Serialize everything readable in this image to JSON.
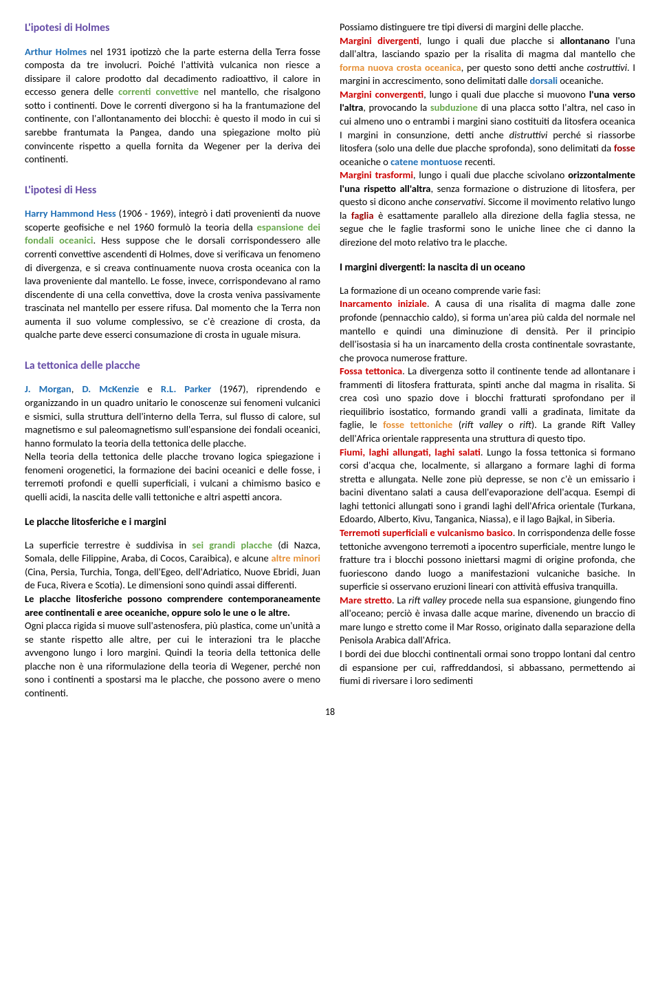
{
  "colors": {
    "blue": "#1f6fb5",
    "green": "#6aa84f",
    "orange": "#e69138",
    "red": "#cc0000",
    "purple": "#674ea7",
    "darkred": "#990000",
    "black": "#000000",
    "bg": "#ffffff"
  },
  "page_number": "18",
  "sec1_title": "L'ipotesi di Holmes",
  "sec1_p1_a": "Arthur Holmes",
  "sec1_p1_b": " nel 1931 ipotizzò che la parte esterna della Terra fosse composta da tre involucri. Poiché l'attività vulcanica non riesce a dissipare il calore prodotto dal decadimento radioattivo, il calore in eccesso genera delle ",
  "sec1_p1_c": "correnti convettive",
  "sec1_p1_d": " nel mantello, che risalgono sotto i continenti. Dove le correnti divergono si ha la frantumazione del continente, con l'allontanamento dei blocchi: è questo il modo in cui si sarebbe frantumata la Pangea, dando una spiegazione molto più convincente rispetto a quella fornita da Wegener per la deriva dei continenti.",
  "sec2_title": "L'ipotesi di Hess",
  "sec2_p1_a": "Harry Hammond Hess",
  "sec2_p1_b": " (1906 - 1969), integrò i dati provenienti da nuove scoperte geofisiche e nel 1960 formulò la teoria della ",
  "sec2_p1_c": "espansione dei fondali oceanici",
  "sec2_p1_d": ". Hess suppose che le dorsali corrispondessero alle correnti convettive ascendenti di Holmes, dove si verificava un fenomeno di divergenza, e si creava continuamente nuova crosta oceanica con la lava proveniente dal mantello. Le fosse, invece, corrispondevano al ramo discendente di una cella convettiva, dove la crosta veniva passivamente trascinata nel mantello per essere rifusa. Dal momento che la Terra non aumenta il suo volume complessivo, se c'è creazione di crosta, da qualche parte deve esserci consumazione di crosta in uguale misura.",
  "sec3_title": "La tettonica delle placche",
  "sec3_p1_a": "J. Morgan",
  "sec3_p1_b": "D. McKenzie",
  "sec3_p1_c": "R.L. Parker",
  "sec3_p1_d": " (1967), riprendendo e organizzando in un quadro unitario le conoscenze sui fenomeni vulcanici e sismici, sulla struttura dell'interno della Terra, sul flusso di calore, sul magnetismo e sul paleomagnetismo sull'espansione dei fondali oceanici, hanno formulato la teoria della tettonica delle placche.",
  "sec3_p2": "Nella teoria della tettonica delle placche trovano logica spiegazione i fenomeni orogenetici, la formazione dei bacini oceanici e delle fosse, i terremoti profondi e quelli superficiali, i vulcani a chimismo basico e quelli acidi, la nascita delle valli tettoniche e altri aspetti ancora.",
  "sub1_title": "Le placche litosferiche e i margini",
  "sub1_p1_a": "La superficie terrestre è suddivisa in ",
  "sub1_p1_b": "sei grandi placche",
  "sub1_p1_c": " (di Nazca, Somala, delle Filippine, Araba, di Cocos, Caraibica), e alcune ",
  "sub1_p1_d": "altre minori",
  "sub1_p1_e": " (Cina, Persia, Turchia, Tonga, dell'Egeo, dell'Adriatico, Nuove Ebridi, Juan de Fuca, Rivera e Scotia). Le dimensioni sono quindi assai differenti.",
  "sub1_p2": "Le placche litosferiche possono comprendere contemporaneamente aree continentali e aree oceaniche, oppure solo le une o le altre.",
  "sub1_p3": "Ogni placca rigida si muove sull'astenosfera, più plastica, come un'unità a se stante rispetto alle altre, per cui le interazioni tra le placche avvengono lungo i loro margini. Quindi la teoria della tettonica delle placche non è una riformulazione della teoria di Wegener, perché non sono i continenti a spostarsi ma le placche, che possono avere o meno continenti.",
  "col2_p1": "Possiamo distinguere tre tipi diversi di margini delle placche.",
  "col2_p2_a": "Margini divergenti",
  "col2_p2_b": ", lungo i quali due placche si ",
  "col2_p2_c": "allontanano",
  "col2_p2_d": " l'una dall'altra, lasciando spazio per la risalita di magma dal mantello che ",
  "col2_p2_e": "forma nuova crosta oceanica",
  "col2_p2_f": ", per questo sono detti anche ",
  "col2_p2_g": "costruttivi",
  "col2_p2_h": ". I margini in accrescimento, sono delimitati dalle ",
  "col2_p2_i": "dorsali",
  "col2_p2_j": " oceaniche.",
  "col2_p3_a": "Margini convergenti",
  "col2_p3_b": ", lungo i quali due placche si muovono ",
  "col2_p3_c": "l'una verso l'altra",
  "col2_p3_d": ", provocando la ",
  "col2_p3_e": "subduzione",
  "col2_p3_f": " di una placca sotto l'altra, nel caso in cui almeno uno o entrambi i margini siano costituiti da litosfera oceanica I margini in consunzione, detti anche ",
  "col2_p3_g": "distruttivi",
  "col2_p3_h": " perché si riassorbe litosfera (solo una delle due placche sprofonda), sono delimitati da ",
  "col2_p3_i": "fosse",
  "col2_p3_j": " oceaniche o ",
  "col2_p3_k": "catene montuose",
  "col2_p3_l": " recenti.",
  "col2_p4_a": "Margini trasformi",
  "col2_p4_b": ", lungo i quali due placche scivolano ",
  "col2_p4_c": "orizzontalmente l'una rispetto all'altra",
  "col2_p4_d": ", senza formazione o distruzione di litosfera, per questo si dicono anche ",
  "col2_p4_e": "conservativi",
  "col2_p4_f": ". Siccome il movimento relativo lungo la ",
  "col2_p4_g": "faglia",
  "col2_p4_h": " è esattamente parallelo alla direzione della faglia stessa, ne segue che le faglie trasformi sono le uniche linee che ci danno la direzione del moto relativo tra le placche.",
  "sub2_title": "I margini divergenti: la nascita di un oceano",
  "sub2_p1": "La formazione di un oceano comprende varie fasi:",
  "sub2_p2_a": "Inarcamento iniziale",
  "sub2_p2_b": ". A causa di una risalita di magma dalle zone profonde (pennacchio caldo), si forma un'area più calda del normale nel mantello e quindi una diminuzione di densità. Per il principio dell'isostasia si ha un inarcamento della crosta continentale sovrastante, che provoca numerose fratture.",
  "sub2_p3_a": "Fossa tettonica",
  "sub2_p3_b": ". La divergenza sotto il continente tende ad allontanare i frammenti di litosfera fratturata, spinti anche dal magma in risalita. Si crea così uno spazio dove i blocchi fratturati sprofondano per il riequilibrio isostatico, formando grandi valli a gradinata, limitate da faglie, le ",
  "sub2_p3_c": "fosse tettoniche",
  "sub2_p3_d": " (",
  "sub2_p3_e": "rift valley",
  "sub2_p3_f": " o ",
  "sub2_p3_g": "rift",
  "sub2_p3_h": "). La grande Rift Valley dell'Africa orientale rappresenta una struttura di questo tipo.",
  "sub2_p4_a": "Fiumi, laghi allungati, laghi salati",
  "sub2_p4_b": ". Lungo la fossa tettonica si formano corsi d'acqua che, localmente, si allargano a formare laghi di forma stretta e allungata. Nelle zone più depresse, se non c'è un emissario i bacini diventano salati a causa dell'evaporazione dell'acqua. Esempi di laghi tettonici allungati sono i grandi laghi dell'Africa orientale (Turkana, Edoardo, Alberto, Kivu, Tanganica, Niassa), e il lago Bajkal, in Siberia.",
  "sub2_p5_a": "Terremoti superficiali e vulcanismo basico",
  "sub2_p5_b": ". In corrispondenza delle fosse tettoniche avvengono terremoti a ipocentro superficiale, mentre lungo le fratture tra i blocchi possono iniettarsi magmi di origine profonda, che fuoriescono dando luogo a manifestazioni vulcaniche basiche. In superficie si osservano eruzioni lineari con attività effusiva tranquilla.",
  "sub2_p6_a": "Mare stretto",
  "sub2_p6_b": ". La ",
  "sub2_p6_c": "rift valley",
  "sub2_p6_d": " procede nella sua espansione, giungendo fino all'oceano; perciò è invasa dalle acque marine, divenendo un braccio di mare lungo e stretto come il Mar Rosso, originato dalla separazione della Penisola Arabica dall'Africa.",
  "sub2_p7": "I bordi dei due blocchi continentali ormai sono troppo lontani dal centro di espansione per cui, raffreddandosi, si abbassano, permettendo ai fiumi di riversare i loro sedimenti"
}
